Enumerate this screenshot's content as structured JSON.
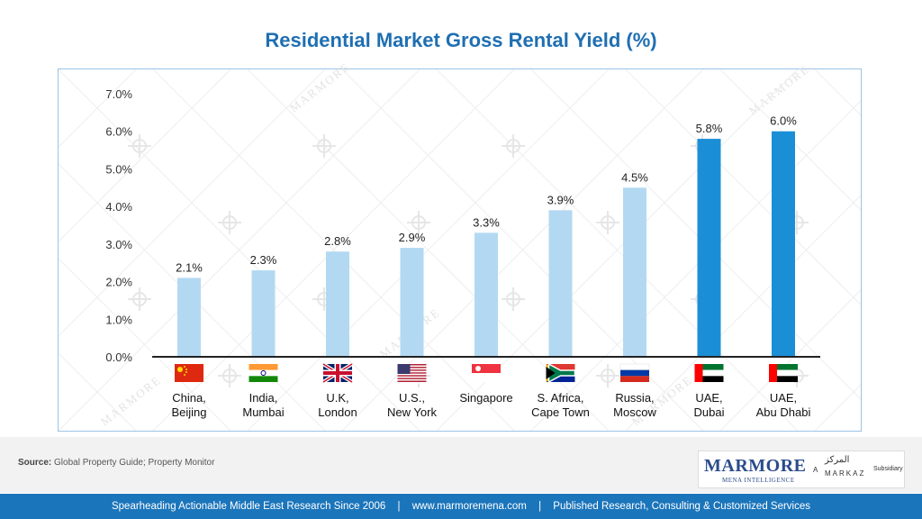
{
  "title": "Residential Market Gross Rental Yield (%)",
  "chart_data": {
    "type": "bar",
    "title": "Residential Market Gross Rental Yield (%)",
    "categories": [
      [
        "China,",
        "Beijing"
      ],
      [
        "India,",
        "Mumbai"
      ],
      [
        "U.K,",
        "London"
      ],
      [
        "U.S.,",
        "New York"
      ],
      [
        "Singapore"
      ],
      [
        "S. Africa,",
        "Cape Town"
      ],
      [
        "Russia,",
        "Moscow"
      ],
      [
        "UAE,",
        "Dubai"
      ],
      [
        "UAE,",
        "Abu Dhabi"
      ]
    ],
    "values": [
      2.1,
      2.3,
      2.8,
      2.9,
      3.3,
      3.9,
      4.5,
      5.8,
      6.0
    ],
    "data_labels": [
      "2.1%",
      "2.3%",
      "2.8%",
      "2.9%",
      "3.3%",
      "3.9%",
      "4.5%",
      "5.8%",
      "6.0%"
    ],
    "flags": [
      "china-flag-icon",
      "india-flag-icon",
      "uk-flag-icon",
      "us-flag-icon",
      "singapore-flag-icon",
      "south-africa-flag-icon",
      "russia-flag-icon",
      "uae-flag-icon",
      "uae-flag-icon"
    ],
    "ylim": [
      0,
      7
    ],
    "yticks": [
      "0.0%",
      "1.0%",
      "2.0%",
      "3.0%",
      "4.0%",
      "5.0%",
      "6.0%",
      "7.0%"
    ],
    "grid": false,
    "legend": "none",
    "colors": {
      "light_bar": "#b3d9f2",
      "highlight_bar": "#1b8fd6"
    },
    "highlighted": [
      7,
      8
    ]
  },
  "source": {
    "label": "Source:",
    "text": "Global Property Guide; Property Monitor"
  },
  "logo": {
    "name": "MARMORE",
    "tagline": "MENA INTELLIGENCE",
    "connector": "A",
    "arabic": "المركز",
    "parent": "MARKAZ",
    "subsidiary": "Subsidiary"
  },
  "watermark": "MARMORE",
  "footer": {
    "left": "Spearheading Actionable Middle East Research Since 2006",
    "site": "www.marmoremena.com",
    "right": "Published Research, Consulting & Customized Services",
    "separator": "|"
  }
}
